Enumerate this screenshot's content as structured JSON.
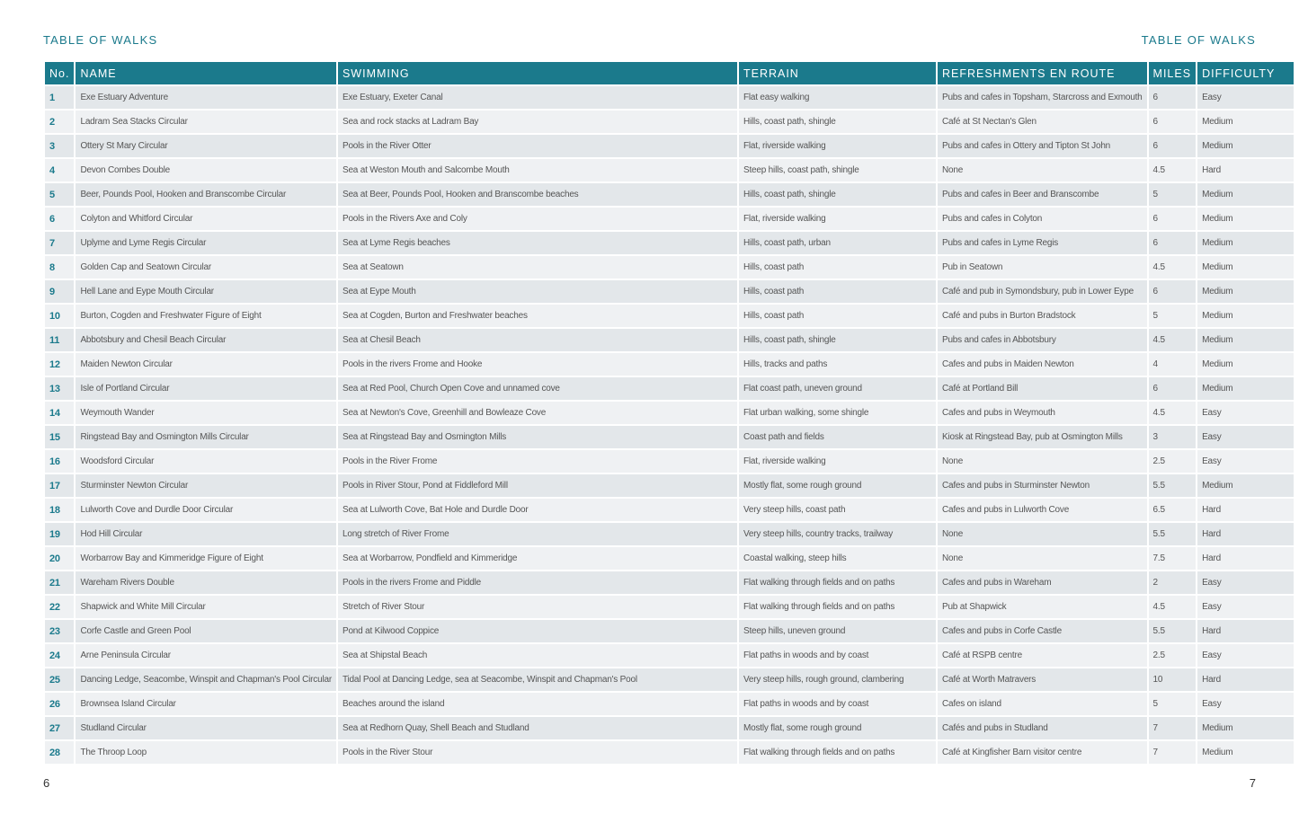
{
  "header": {
    "left_title": "TABLE OF WALKS",
    "right_title": "TABLE OF WALKS"
  },
  "table": {
    "columns": [
      "No.",
      "NAME",
      "SWIMMING",
      "TERRAIN",
      "REFRESHMENTS EN ROUTE",
      "MILES",
      "DIFFICULTY"
    ],
    "rows": [
      [
        1,
        "Exe Estuary Adventure",
        "Exe Estuary, Exeter Canal",
        "Flat easy walking",
        "Pubs and cafes in Topsham, Starcross and Exmouth",
        6,
        "Easy"
      ],
      [
        2,
        "Ladram Sea Stacks Circular",
        "Sea and rock stacks at Ladram Bay",
        "Hills, coast path, shingle",
        "Café at St Nectan's Glen",
        6,
        "Medium"
      ],
      [
        3,
        "Ottery St Mary Circular",
        "Pools in the River Otter",
        "Flat, riverside walking",
        "Pubs and cafes in Ottery and Tipton St John",
        6,
        "Medium"
      ],
      [
        4,
        "Devon Combes Double",
        "Sea at Weston Mouth and Salcombe Mouth",
        "Steep hills, coast path, shingle",
        "None",
        4.5,
        "Hard"
      ],
      [
        5,
        "Beer, Pounds Pool, Hooken and Branscombe Circular",
        "Sea at Beer, Pounds Pool, Hooken and Branscombe beaches",
        "Hills, coast path, shingle",
        "Pubs and cafes in Beer and Branscombe",
        5,
        "Medium"
      ],
      [
        6,
        "Colyton and Whitford Circular",
        "Pools in the Rivers Axe and Coly",
        "Flat, riverside walking",
        "Pubs and cafes in Colyton",
        6,
        "Medium"
      ],
      [
        7,
        "Uplyme and Lyme Regis Circular",
        "Sea at Lyme Regis beaches",
        "Hills, coast path, urban",
        "Pubs and cafes in Lyme Regis",
        6,
        "Medium"
      ],
      [
        8,
        "Golden Cap and Seatown Circular",
        "Sea at Seatown",
        "Hills, coast path",
        "Pub in Seatown",
        4.5,
        "Medium"
      ],
      [
        9,
        "Hell Lane and Eype Mouth Circular",
        "Sea at Eype Mouth",
        "Hills, coast path",
        "Café and pub in Symondsbury, pub in Lower Eype",
        6,
        "Medium"
      ],
      [
        10,
        "Burton, Cogden and Freshwater Figure of Eight",
        "Sea at Cogden, Burton and Freshwater beaches",
        "Hills, coast path",
        "Café and pubs in Burton Bradstock",
        5,
        "Medium"
      ],
      [
        11,
        "Abbotsbury and Chesil Beach Circular",
        "Sea at Chesil Beach",
        "Hills, coast path, shingle",
        "Pubs and cafes in Abbotsbury",
        4.5,
        "Medium"
      ],
      [
        12,
        "Maiden Newton Circular",
        "Pools in the rivers Frome and Hooke",
        "Hills, tracks and paths",
        "Cafes and pubs in Maiden Newton",
        4,
        "Medium"
      ],
      [
        13,
        "Isle of Portland Circular",
        "Sea at Red Pool, Church Open Cove and unnamed cove",
        "Flat coast path, uneven ground",
        "Café at Portland Bill",
        6,
        "Medium"
      ],
      [
        14,
        "Weymouth Wander",
        "Sea at Newton's Cove, Greenhill and Bowleaze Cove",
        "Flat urban walking, some shingle",
        "Cafes and pubs in Weymouth",
        4.5,
        "Easy"
      ],
      [
        15,
        "Ringstead Bay and Osmington Mills Circular",
        "Sea at Ringstead Bay and Osmington Mills",
        "Coast path and fields",
        "Kiosk at Ringstead Bay, pub at Osmington Mills",
        3,
        "Easy"
      ],
      [
        16,
        "Woodsford Circular",
        "Pools in the River Frome",
        "Flat, riverside walking",
        "None",
        2.5,
        "Easy"
      ],
      [
        17,
        "Sturminster Newton Circular",
        "Pools in River Stour, Pond at Fiddleford Mill",
        "Mostly flat, some rough ground",
        "Cafes and pubs in Sturminster Newton",
        5.5,
        "Medium"
      ],
      [
        18,
        "Lulworth Cove and Durdle Door Circular",
        "Sea at Lulworth Cove, Bat Hole and Durdle Door",
        "Very steep hills, coast path",
        "Cafes and pubs in Lulworth Cove",
        6.5,
        "Hard"
      ],
      [
        19,
        "Hod Hill Circular",
        "Long stretch of River Frome",
        "Very steep hills, country tracks, trailway",
        "None",
        5.5,
        "Hard"
      ],
      [
        20,
        "Worbarrow Bay and Kimmeridge Figure of Eight",
        "Sea at Worbarrow, Pondfield and Kimmeridge",
        "Coastal walking, steep hills",
        "None",
        7.5,
        "Hard"
      ],
      [
        21,
        "Wareham Rivers Double",
        "Pools in the rivers Frome and Piddle",
        "Flat walking through fields and on paths",
        "Cafes and pubs in Wareham",
        2,
        "Easy"
      ],
      [
        22,
        "Shapwick and White Mill Circular",
        "Stretch of River Stour",
        "Flat walking through fields and on paths",
        "Pub at Shapwick",
        4.5,
        "Easy"
      ],
      [
        23,
        "Corfe Castle and Green Pool",
        "Pond at Kilwood Coppice",
        "Steep hills, uneven ground",
        "Cafes and pubs in Corfe Castle",
        5.5,
        "Hard"
      ],
      [
        24,
        "Arne Peninsula Circular",
        "Sea at Shipstal Beach",
        "Flat paths in woods and by coast",
        "Café at RSPB centre",
        2.5,
        "Easy"
      ],
      [
        25,
        "Dancing Ledge, Seacombe, Winspit and Chapman's Pool Circular",
        "Tidal Pool at Dancing Ledge, sea at Seacombe, Winspit and Chapman's Pool",
        "Very steep hills, rough ground, clambering",
        "Café at Worth Matravers",
        10,
        "Hard"
      ],
      [
        26,
        "Brownsea Island Circular",
        "Beaches around the island",
        "Flat paths in woods and by coast",
        "Cafes on island",
        5,
        "Easy"
      ],
      [
        27,
        "Studland Circular",
        "Sea at Redhorn Quay, Shell Beach and Studland",
        "Mostly flat, some rough ground",
        "Cafés and pubs in Studland",
        7,
        "Medium"
      ],
      [
        28,
        "The Throop Loop",
        "Pools in the River Stour",
        "Flat walking through fields and on paths",
        "Café at Kingfisher Barn visitor centre",
        7,
        "Medium"
      ]
    ]
  },
  "footer": {
    "left_page": 6,
    "right_page": 7
  }
}
